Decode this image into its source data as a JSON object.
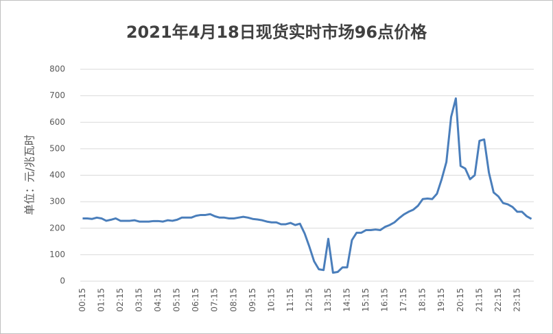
{
  "chart_data": {
    "type": "line",
    "title": "2021年4月18日现货实时市场96点价格",
    "y_label": "单位：元/兆瓦时",
    "categories": [
      "00:15",
      null,
      null,
      null,
      "01:15",
      null,
      null,
      null,
      "02:15",
      null,
      null,
      null,
      "03:15",
      null,
      null,
      null,
      "04:15",
      null,
      null,
      null,
      "05:15",
      null,
      null,
      null,
      "06:15",
      null,
      null,
      null,
      "07:15",
      null,
      null,
      null,
      "08:15",
      null,
      null,
      null,
      "09:15",
      null,
      null,
      null,
      "10:15",
      null,
      null,
      null,
      "11:15",
      null,
      null,
      null,
      "12:15",
      null,
      null,
      null,
      "13:15",
      null,
      null,
      null,
      "14:15",
      null,
      null,
      null,
      "15:15",
      null,
      null,
      null,
      "16:15",
      null,
      null,
      null,
      "17:15",
      null,
      null,
      null,
      "18:15",
      null,
      null,
      null,
      "19:15",
      null,
      null,
      null,
      "20:15",
      null,
      null,
      null,
      "21:15",
      null,
      null,
      null,
      "22:15",
      null,
      null,
      null,
      "23:15",
      null,
      null,
      null
    ],
    "values": [
      237,
      237,
      235,
      240,
      237,
      228,
      232,
      237,
      228,
      228,
      228,
      230,
      225,
      225,
      225,
      227,
      227,
      225,
      230,
      228,
      232,
      240,
      240,
      240,
      247,
      250,
      250,
      253,
      245,
      240,
      240,
      237,
      237,
      240,
      243,
      240,
      235,
      233,
      230,
      225,
      222,
      222,
      215,
      215,
      220,
      212,
      217,
      180,
      130,
      75,
      45,
      42,
      160,
      32,
      35,
      52,
      52,
      155,
      183,
      183,
      193,
      193,
      195,
      193,
      205,
      212,
      222,
      238,
      252,
      262,
      270,
      285,
      310,
      312,
      310,
      330,
      385,
      450,
      620,
      690,
      435,
      425,
      385,
      400,
      530,
      535,
      410,
      335,
      320,
      295,
      290,
      280,
      262,
      262,
      245,
      235
    ],
    "color": "#4a7ebb",
    "ylim": [
      0,
      800
    ],
    "yticks": [
      0,
      100,
      200,
      300,
      400,
      500,
      600,
      700,
      800
    ],
    "grid": true
  }
}
